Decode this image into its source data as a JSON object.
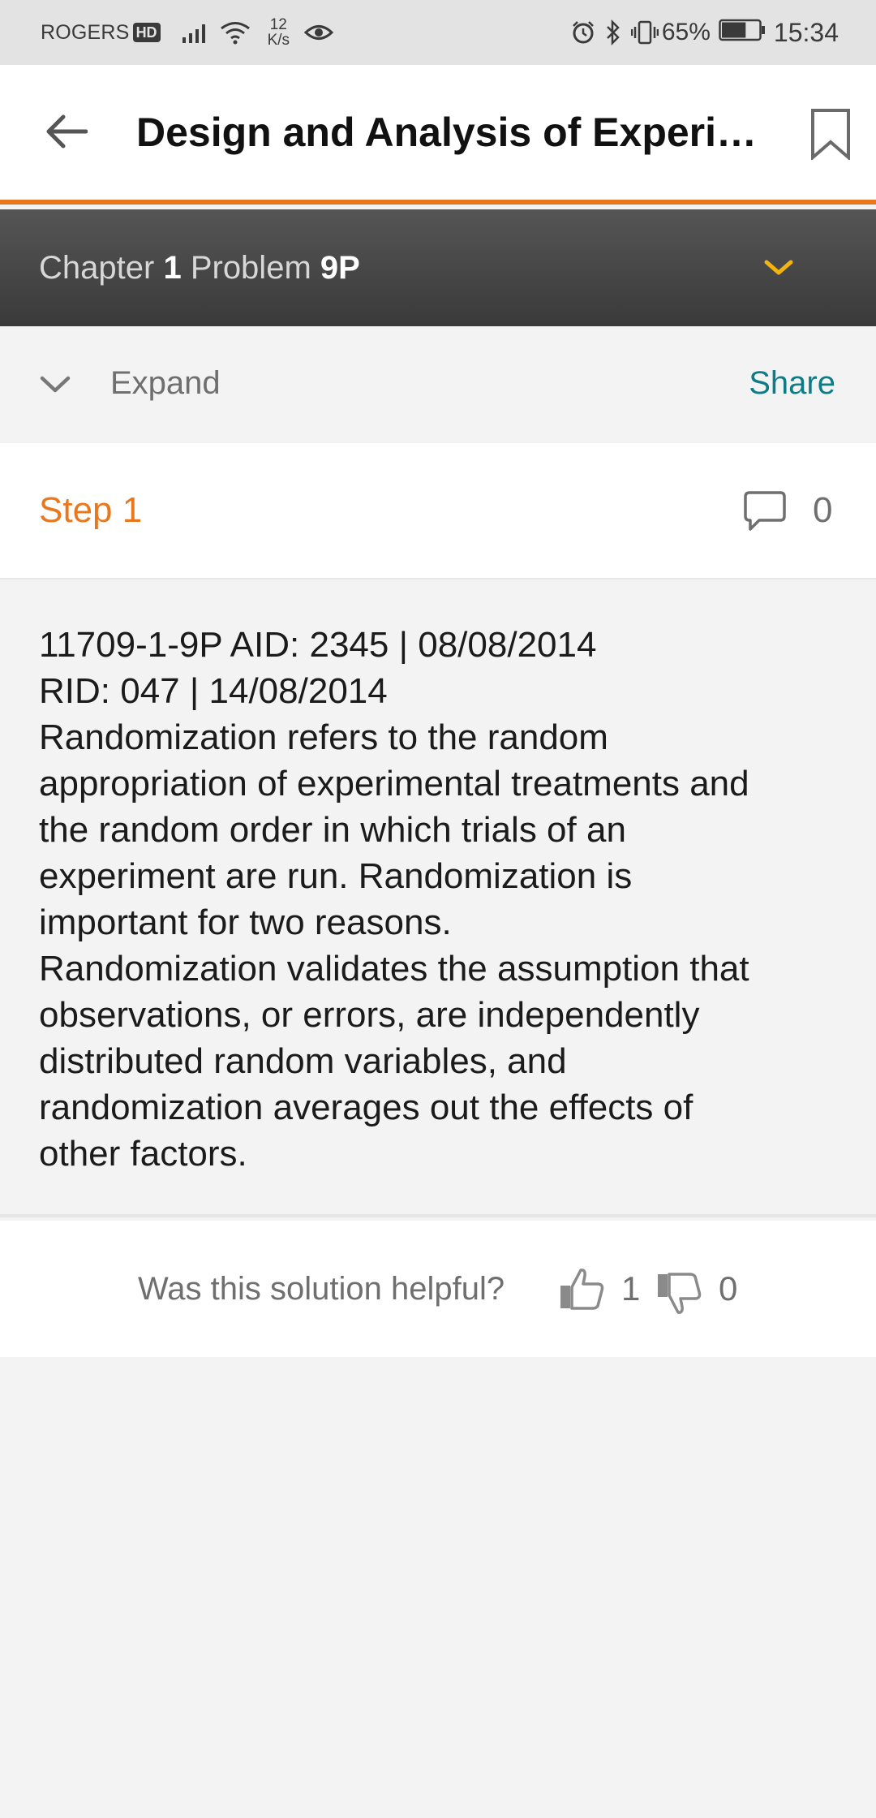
{
  "status_bar": {
    "carrier": "ROGERS",
    "hd_badge": "HD",
    "speed_value": "12",
    "speed_unit": "K/s",
    "battery_percent": "65%",
    "battery_level": 0.65,
    "time": "15:34",
    "icons": [
      "signal-icon",
      "wifi-icon",
      "eye-icon",
      "alarm-icon",
      "bluetooth-icon",
      "vibrate-icon",
      "battery-icon"
    ]
  },
  "app_bar": {
    "title": "Design and Analysis of Experi…",
    "back_icon": "arrow-left-icon",
    "bookmark_icon": "bookmark-icon"
  },
  "chapter_bar": {
    "chapter_word": "Chapter",
    "chapter_number": "1",
    "problem_word": "Problem",
    "problem_number": "9P",
    "dropdown_icon": "chevron-down-icon"
  },
  "expand_row": {
    "expand_label": "Expand",
    "share_label": "Share"
  },
  "step": {
    "title": "Step 1",
    "comment_count": "0"
  },
  "solution_lines": [
    "11709-1-9P AID: 2345 | 08/08/2014",
    "RID: 047 | 14/08/2014",
    "Randomization refers to the random",
    "appropriation of experimental treatments and",
    "the random order in which trials of an",
    "experiment are run. Randomization is",
    "important for two reasons.",
    "Randomization validates the assumption that",
    "observations, or errors, are independently",
    "distributed random variables, and",
    "randomization averages out the effects of",
    "other factors."
  ],
  "feedback": {
    "question": "Was this solution helpful?",
    "thumbs_up_count": "1",
    "thumbs_down_count": "0"
  },
  "colors": {
    "accent_orange": "#e8781e",
    "share_teal": "#0e7c86",
    "dropdown_yellow": "#f2b50f",
    "chapter_bar": "#444444"
  }
}
